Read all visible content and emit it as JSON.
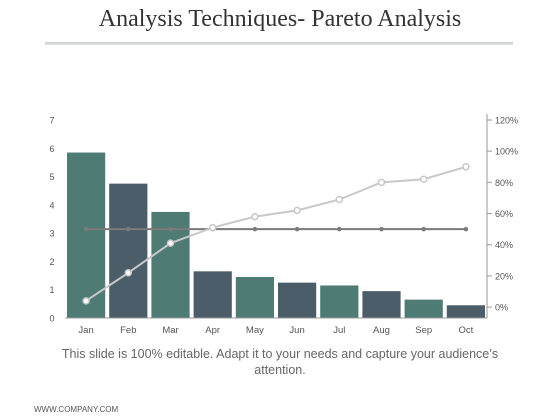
{
  "page": {
    "title": "Analysis Techniques- Pareto Analysis",
    "caption": "This slide is 100% editable. Adapt it to your needs and capture your audience’s attention.",
    "footer": "WWW.COMPANY.COM"
  },
  "chart_data": {
    "type": "bar",
    "title": "",
    "categories": [
      "Jan",
      "Feb",
      "Mar",
      "Apr",
      "May",
      "Jun",
      "Jul",
      "Aug",
      "Sep",
      "Oct"
    ],
    "series": [
      {
        "type": "bar",
        "axis": "left",
        "values": [
          5.85,
          4.75,
          3.75,
          1.65,
          1.45,
          1.25,
          1.15,
          0.95,
          0.65,
          0.45
        ]
      },
      {
        "type": "line",
        "axis": "right",
        "values": [
          4,
          22,
          41,
          51,
          58,
          62,
          69,
          80,
          82,
          90
        ]
      },
      {
        "type": "line",
        "axis": "right",
        "values": [
          50,
          50,
          50,
          50,
          50,
          50,
          50,
          50,
          50,
          50
        ]
      }
    ],
    "yleft": {
      "ylim": [
        0,
        7
      ],
      "ticks": [
        "0",
        "1",
        "2",
        "3",
        "4",
        "5",
        "6",
        "7"
      ]
    },
    "yright": {
      "ylim": [
        -7,
        120
      ],
      "ticks": [
        "0%",
        "20%",
        "40%",
        "60%",
        "80%",
        "100%",
        "120%"
      ],
      "tick_values": [
        0,
        20,
        40,
        60,
        80,
        100,
        120
      ]
    },
    "grid": false,
    "legend": "none",
    "colors": {
      "bar_a": "#4f7b75",
      "bar_b": "#4b5d69",
      "cumulative_line": "#c8c8c8",
      "threshold_line": "#7a7a7a",
      "axis": "#999999",
      "tick_text": "#555555"
    }
  }
}
